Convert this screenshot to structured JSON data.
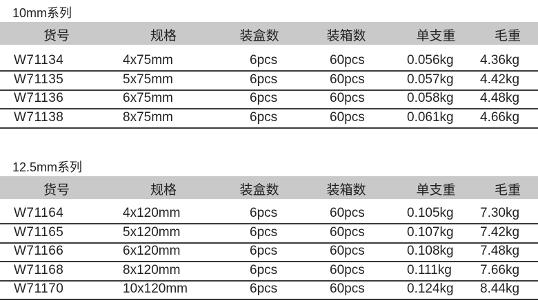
{
  "headers": [
    "货号",
    "规格",
    "装盒数",
    "装箱数",
    "单支重",
    "毛重"
  ],
  "tables": [
    {
      "title": "10mm系列",
      "rows": [
        [
          "W71134",
          "4x75mm",
          "6pcs",
          "60pcs",
          "0.056kg",
          "4.36kg"
        ],
        [
          "W71135",
          "5x75mm",
          "6pcs",
          "60pcs",
          "0.057kg",
          "4.42kg"
        ],
        [
          "W71136",
          "6x75mm",
          "6pcs",
          "60pcs",
          "0.058kg",
          "4.48kg"
        ],
        [
          "W71138",
          "8x75mm",
          "6pcs",
          "60pcs",
          "0.061kg",
          "4.66kg"
        ]
      ]
    },
    {
      "title": "12.5mm系列",
      "rows": [
        [
          "W71164",
          "4x120mm",
          "6pcs",
          "60pcs",
          "0.105kg",
          "7.30kg"
        ],
        [
          "W71165",
          "5x120mm",
          "6pcs",
          "60pcs",
          "0.107kg",
          "7.42kg"
        ],
        [
          "W71166",
          "6x120mm",
          "6pcs",
          "60pcs",
          "0.108kg",
          "7.48kg"
        ],
        [
          "W71168",
          "8x120mm",
          "6pcs",
          "60pcs",
          "0.111kg",
          "7.66kg"
        ],
        [
          "W71170",
          "10x120mm",
          "6pcs",
          "60pcs",
          "0.124kg",
          "8.44kg"
        ]
      ]
    }
  ]
}
